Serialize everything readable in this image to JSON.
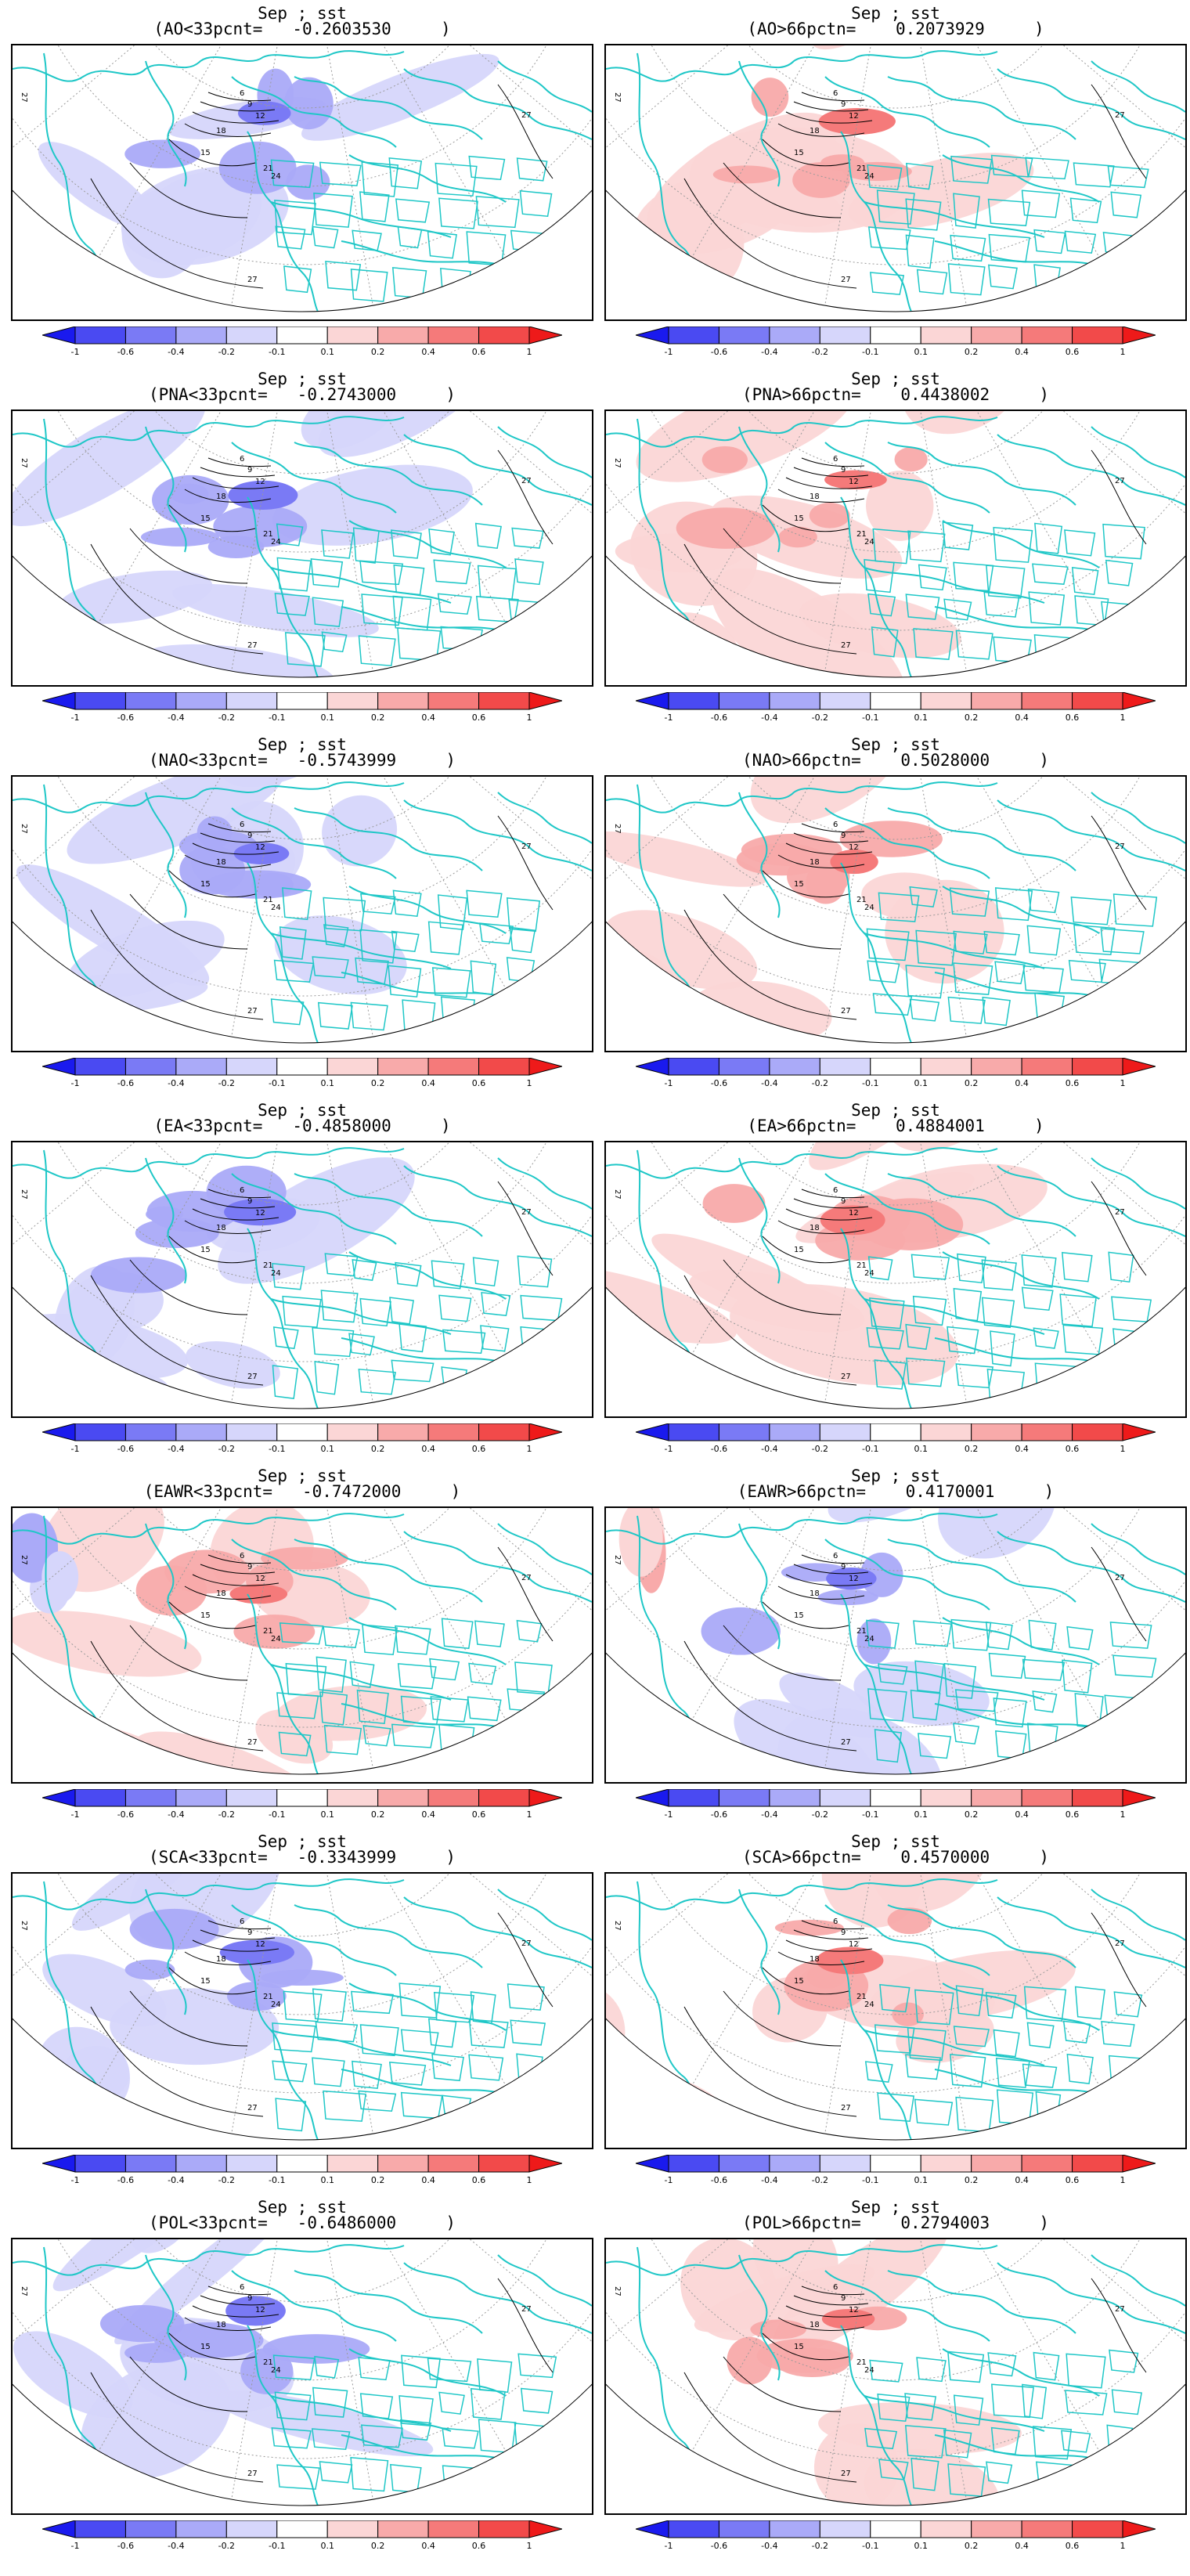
{
  "colorbar": {
    "labels": [
      "-1",
      "-0.6",
      "-0.4",
      "-0.2",
      "-0.1",
      "0.1",
      "0.2",
      "0.4",
      "0.6",
      "1"
    ],
    "colors": [
      "#1a1aee",
      "#4a4af2",
      "#7a7af5",
      "#aaaaf8",
      "#d6d6fb",
      "#ffffff",
      "#fbd6d6",
      "#f8aaaa",
      "#f57a7a",
      "#f24a4a",
      "#ee1a1a"
    ]
  },
  "contour_labels": [
    "6",
    "9",
    "12",
    "15",
    "18",
    "21",
    "24",
    "27"
  ],
  "colors": {
    "coastline": "#1fc7c7",
    "contour": "#000000",
    "grid": "#9a9a9a"
  },
  "panels": [
    {
      "title1": "Sep ; sst",
      "title2": "(AO<33pcnt=   -0.2603530     )",
      "sign": "neg"
    },
    {
      "title1": "Sep ; sst",
      "title2": "(AO>66pctn=    0.2073929     )",
      "sign": "pos"
    },
    {
      "title1": "Sep ; sst",
      "title2": "(PNA<33pcnt=   -0.2743000     )",
      "sign": "neg"
    },
    {
      "title1": "Sep ; sst",
      "title2": "(PNA>66pctn=    0.4438002     )",
      "sign": "pos"
    },
    {
      "title1": "Sep ; sst",
      "title2": "(NAO<33pcnt=   -0.5743999     )",
      "sign": "neg"
    },
    {
      "title1": "Sep ; sst",
      "title2": "(NAO>66pctn=    0.5028000     )",
      "sign": "pos"
    },
    {
      "title1": "Sep ; sst",
      "title2": "(EA<33pcnt=   -0.4858000     )",
      "sign": "neg"
    },
    {
      "title1": "Sep ; sst",
      "title2": "(EA>66pctn=    0.4884001     )",
      "sign": "pos"
    },
    {
      "title1": "Sep ; sst",
      "title2": "(EAWR<33pcnt=   -0.7472000     )",
      "sign": "mixpos"
    },
    {
      "title1": "Sep ; sst",
      "title2": "(EAWR>66pctn=    0.4170001     )",
      "sign": "mixneg"
    },
    {
      "title1": "Sep ; sst",
      "title2": "(SCA<33pcnt=   -0.3343999     )",
      "sign": "neg"
    },
    {
      "title1": "Sep ; sst",
      "title2": "(SCA>66pctn=    0.4570000     )",
      "sign": "pos"
    },
    {
      "title1": "Sep ; sst",
      "title2": "(POL<33pcnt=   -0.6486000     )",
      "sign": "neg"
    },
    {
      "title1": "Sep ; sst",
      "title2": "(POL>66pctn=    0.2794003     )",
      "sign": "pos"
    }
  ]
}
